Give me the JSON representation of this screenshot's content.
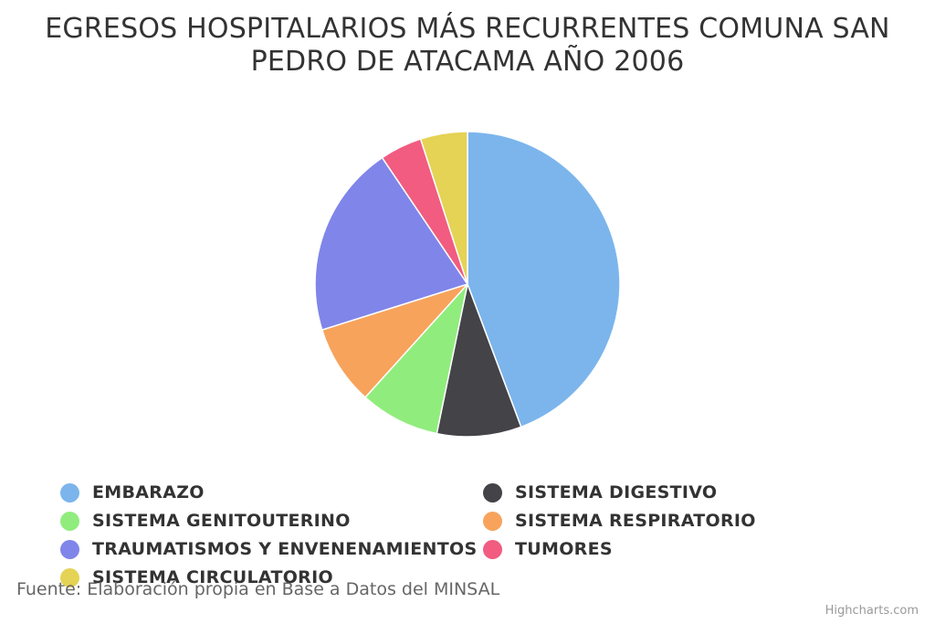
{
  "chart_data": {
    "type": "pie",
    "title_lines": [
      "EGRESOS HOSPITALARIOS MÁS RECURRENTES COMUNA SAN",
      "PEDRO DE ATACAMA AÑO 2006"
    ],
    "slices": [
      {
        "name": "EMBARAZO",
        "value": 44.5,
        "color": "#7cb5ec"
      },
      {
        "name": "SISTEMA DIGESTIVO",
        "value": 9.0,
        "color": "#434348"
      },
      {
        "name": "SISTEMA GENITOUTERINO",
        "value": 8.5,
        "color": "#90ed7d"
      },
      {
        "name": "SISTEMA RESPIRATORIO",
        "value": 8.5,
        "color": "#f7a35c"
      },
      {
        "name": "TRAUMATISMOS Y ENVENENAMIENTOS",
        "value": 20.5,
        "color": "#8085e9"
      },
      {
        "name": "TUMORES",
        "value": 4.5,
        "color": "#f15c80"
      },
      {
        "name": "SISTEMA CIRCULATORIO",
        "value": 5.0,
        "color": "#e4d354"
      }
    ],
    "legend_position": "bottom"
  },
  "credits": {
    "source": "Fuente: Elaboración propia en Base a Datos del MINSAL",
    "link": "Highcharts.com"
  }
}
